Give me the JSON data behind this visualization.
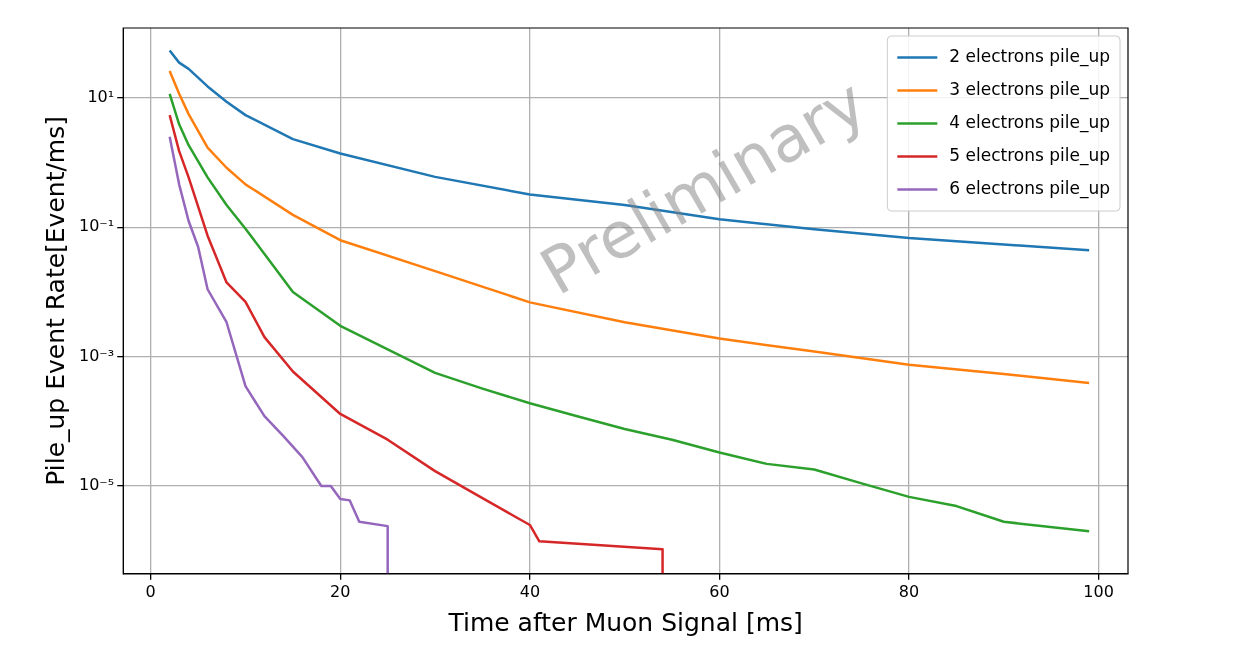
{
  "chart_data": {
    "type": "line",
    "xlabel": "Time after Muon Signal [ms]",
    "ylabel": "Pile_up Event Rate[Event/ms]",
    "log": "y",
    "grid": true,
    "legend": "top right",
    "marker": "none",
    "line_style": "solid",
    "xlim": [
      -2.9,
      103.1
    ],
    "xticks": [
      0,
      20,
      40,
      60,
      80,
      100
    ],
    "ylim": [
      4.4e-07,
      120
    ],
    "yticks": [
      {
        "value": 1e-05,
        "label": "10⁻⁵"
      },
      {
        "value": 0.001,
        "label": "10⁻³"
      },
      {
        "value": 0.1,
        "label": "10⁻¹"
      },
      {
        "value": 10,
        "label": "10¹"
      }
    ],
    "annotations": [
      "Preliminary"
    ],
    "series": [
      {
        "name": "2 electrons pile_up",
        "color": "#1f77b4",
        "x": [
          2,
          3,
          4,
          6,
          8,
          10,
          15,
          20,
          30,
          40,
          50,
          60,
          70,
          80,
          90,
          99
        ],
        "values": [
          54,
          35,
          28,
          15,
          8.7,
          5.4,
          2.3,
          1.38,
          0.6,
          0.32,
          0.22,
          0.133,
          0.093,
          0.068,
          0.054,
          0.044
        ]
      },
      {
        "name": "3 electrons pile_up",
        "color": "#ff7f0e",
        "x": [
          2,
          3,
          4,
          6,
          8,
          10,
          15,
          20,
          30,
          40,
          50,
          60,
          70,
          80,
          90,
          99
        ],
        "values": [
          26,
          11.6,
          5.6,
          1.7,
          0.83,
          0.46,
          0.155,
          0.063,
          0.021,
          0.0069,
          0.0034,
          0.0019,
          0.0012,
          0.00075,
          0.00054,
          0.00039
        ]
      },
      {
        "name": "4 electrons pile_up",
        "color": "#2ca02c",
        "x": [
          2,
          3,
          4,
          6,
          8,
          10,
          15,
          20,
          25,
          30,
          35,
          40,
          45,
          50,
          55,
          60,
          65,
          70,
          75,
          80,
          85,
          90,
          99
        ],
        "values": [
          11.5,
          3.9,
          1.85,
          0.59,
          0.22,
          0.095,
          0.01,
          0.003,
          0.0013,
          0.00056,
          0.00032,
          0.00019,
          0.00012,
          7.6e-05,
          5.2e-05,
          3.3e-05,
          2.2e-05,
          1.8e-05,
          1.1e-05,
          6.8e-06,
          4.9e-06,
          2.8e-06,
          2e-06
        ]
      },
      {
        "name": "5 electrons pile_up",
        "color": "#d62728",
        "x": [
          2,
          3,
          4,
          6,
          8,
          10,
          12,
          15,
          20,
          25,
          30,
          35,
          40,
          41,
          54,
          54
        ],
        "values": [
          5.4,
          1.5,
          0.59,
          0.074,
          0.014,
          0.007,
          0.002,
          0.00059,
          0.00013,
          5.2e-05,
          1.7e-05,
          6.5e-06,
          2.5e-06,
          1.4e-06,
          1.05e-06,
          4.4e-07
        ]
      },
      {
        "name": "6 electrons pile_up",
        "color": "#9467bd",
        "x": [
          2,
          3,
          4,
          5,
          6,
          8,
          10,
          12,
          14,
          16,
          18,
          19,
          20,
          21,
          22,
          25,
          25
        ],
        "values": [
          2.5,
          0.46,
          0.125,
          0.05,
          0.011,
          0.0034,
          0.00035,
          0.00012,
          5.9e-05,
          2.8e-05,
          1e-05,
          1e-05,
          6.3e-06,
          6e-06,
          2.8e-06,
          2.4e-06,
          4.4e-07
        ]
      }
    ]
  }
}
